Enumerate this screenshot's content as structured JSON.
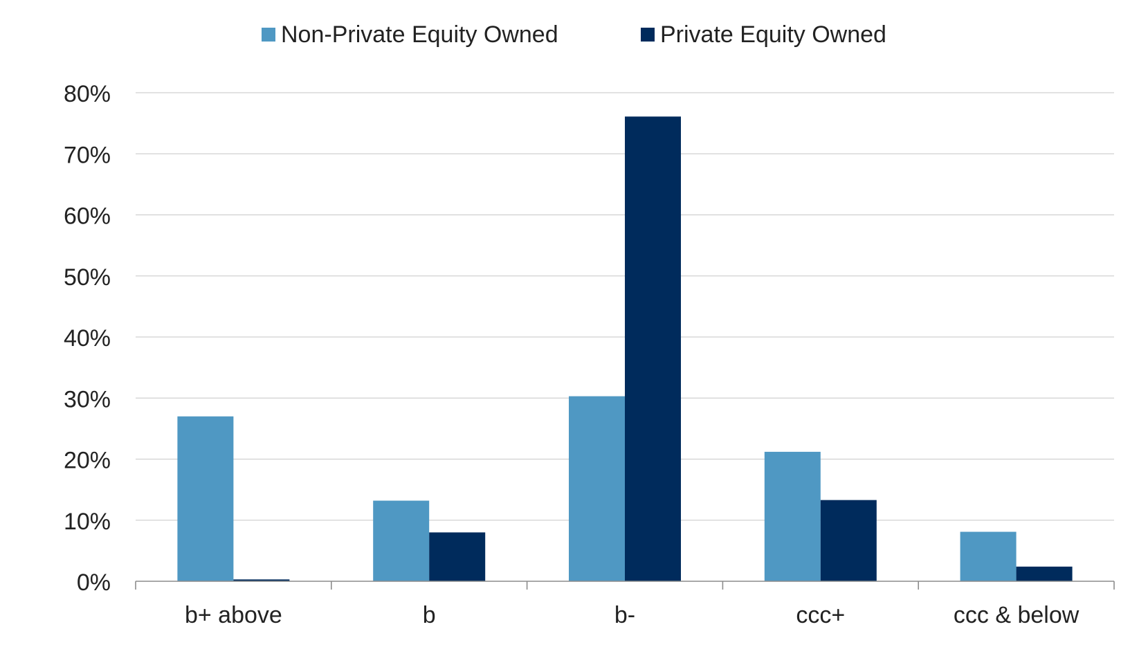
{
  "chart_data": {
    "type": "bar",
    "title": "",
    "xlabel": "",
    "ylabel": "",
    "categories": [
      "b+ above",
      "b",
      "b-",
      "ccc+",
      "ccc & below"
    ],
    "series": [
      {
        "name": "Non-Private Equity Owned",
        "color": "#4f98c3",
        "values": [
          27.0,
          13.2,
          30.3,
          21.2,
          8.1
        ]
      },
      {
        "name": "Private Equity Owned",
        "color": "#002b5c",
        "values": [
          0.3,
          8.0,
          76.1,
          13.3,
          2.4
        ]
      }
    ],
    "ylim": [
      0,
      80
    ],
    "yticks": [
      0,
      10,
      20,
      30,
      40,
      50,
      60,
      70,
      80
    ],
    "ytick_labels": [
      "0%",
      "10%",
      "20%",
      "30%",
      "40%",
      "50%",
      "60%",
      "70%",
      "80%"
    ],
    "grid": true,
    "gridline_color": "#d0d0d0",
    "axis_color": "#8c8c8c",
    "legend_position": "top-center"
  }
}
